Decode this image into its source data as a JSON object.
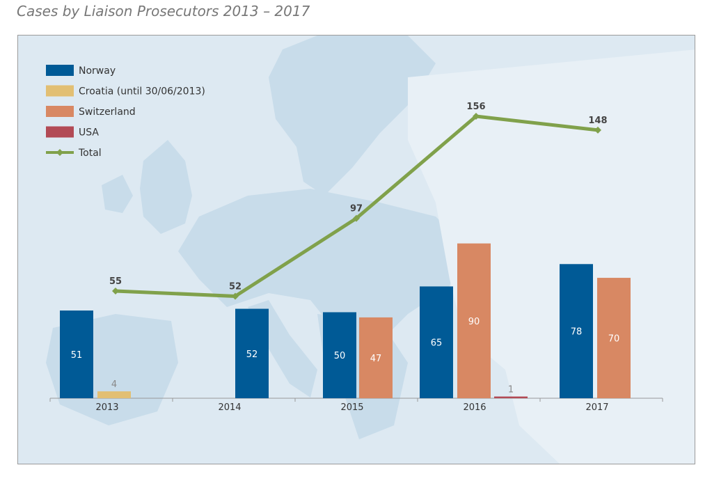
{
  "title": "Cases by Liaison Prosecutors 2013 – 2017",
  "chart_data": {
    "type": "bar",
    "title": "Cases by Liaison Prosecutors 2013 – 2017",
    "categories": [
      "2013",
      "2014",
      "2015",
      "2016",
      "2017"
    ],
    "series": [
      {
        "name": "Norway",
        "color": "#005a96",
        "values": [
          51,
          52,
          50,
          65,
          78
        ]
      },
      {
        "name": "Croatia (until 30/06/2013)",
        "color": "#e2bf73",
        "values": [
          4,
          null,
          null,
          null,
          null
        ]
      },
      {
        "name": "Switzerland",
        "color": "#d88863",
        "values": [
          null,
          null,
          47,
          90,
          70
        ]
      },
      {
        "name": "USA",
        "color": "#b24a55",
        "values": [
          null,
          null,
          null,
          1,
          null
        ]
      }
    ],
    "line_series": {
      "name": "Total",
      "color": "#80a14b",
      "values": [
        55,
        52,
        97,
        156,
        148
      ]
    },
    "legend": [
      "Norway",
      "Croatia (until 30/06/2013)",
      "Switzerland",
      "USA",
      "Total"
    ],
    "legend_position": "top-left",
    "xlabel": "",
    "ylabel": "",
    "grid": false
  }
}
